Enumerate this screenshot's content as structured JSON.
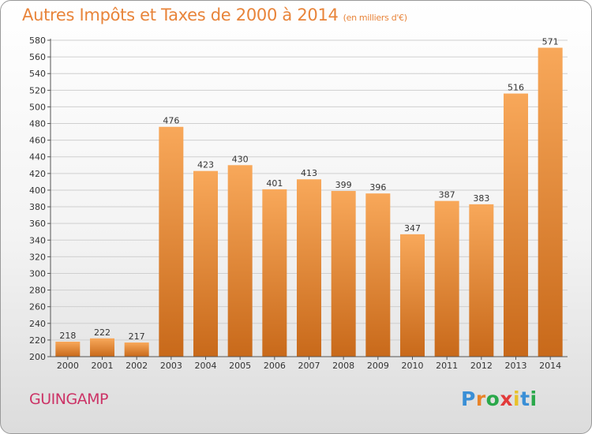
{
  "title": "Autres Impôts et Taxes de 2000 à 2014",
  "title_unit": "(en milliers d'€)",
  "commune": "GUINGAMP",
  "logo": {
    "text": "Proxiti",
    "letters": [
      "P",
      "r",
      "o",
      "x",
      "i",
      "t",
      "i"
    ],
    "colors": [
      "#3a8fd6",
      "#e8842a",
      "#2aa84a",
      "#e23a3a",
      "#e8c12a",
      "#3a8fd6",
      "#2aa84a"
    ]
  },
  "colors": {
    "title": "#e8843a",
    "commune": "#cc3366",
    "bar_light": "#f8a85a",
    "bar_dark": "#c8691a"
  },
  "chart_data": {
    "type": "bar",
    "categories": [
      "2000",
      "2001",
      "2002",
      "2003",
      "2004",
      "2005",
      "2006",
      "2007",
      "2008",
      "2009",
      "2010",
      "2011",
      "2012",
      "2013",
      "2014"
    ],
    "values": [
      218,
      222,
      217,
      476,
      423,
      430,
      401,
      413,
      399,
      396,
      347,
      387,
      383,
      516,
      571
    ],
    "title": "Autres Impôts et Taxes de 2000 à 2014",
    "xlabel": "",
    "ylabel": "",
    "ylim": [
      200,
      580
    ],
    "yticks": [
      200,
      220,
      240,
      260,
      280,
      300,
      320,
      340,
      360,
      380,
      400,
      420,
      440,
      460,
      480,
      500,
      520,
      540,
      560,
      580
    ],
    "grid": true,
    "data_labels": true
  }
}
